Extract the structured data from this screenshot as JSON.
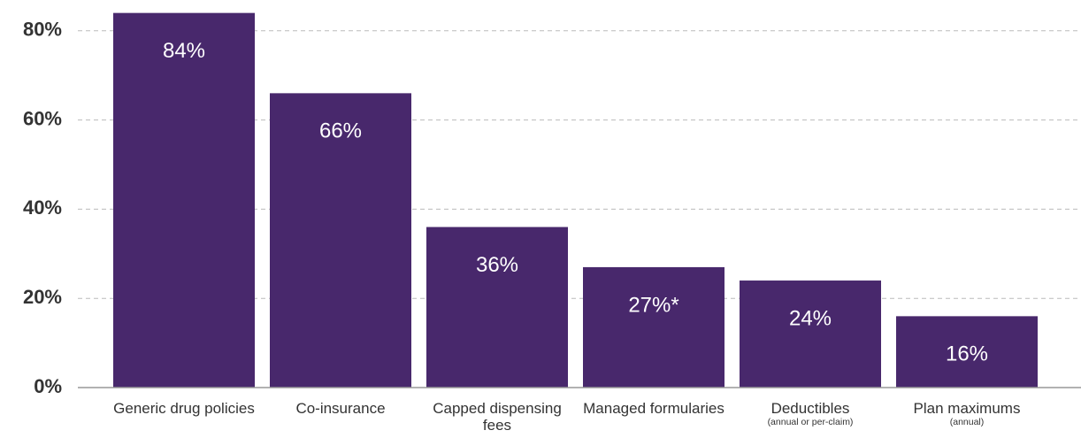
{
  "chart_data": {
    "type": "bar",
    "categories": [
      "Generic drug policies",
      "Co-insurance",
      "Capped dispensing fees",
      "Managed formularies",
      "Deductibles",
      "Plan maximums"
    ],
    "category_notes": [
      null,
      null,
      null,
      null,
      "(annual or per-claim)",
      "(annual)"
    ],
    "values": [
      84,
      66,
      36,
      27,
      24,
      16
    ],
    "value_labels": [
      "84%",
      "66%",
      "36%",
      "27%*",
      "24%",
      "16%"
    ],
    "color": "#48286c",
    "ylim": [
      0,
      85
    ],
    "yticks": [
      {
        "value": 0,
        "label": "0%"
      },
      {
        "value": 20,
        "label": "20%"
      },
      {
        "value": 40,
        "label": "40%"
      },
      {
        "value": 60,
        "label": "60%"
      },
      {
        "value": 80,
        "label": "80%"
      }
    ],
    "grid": true
  }
}
